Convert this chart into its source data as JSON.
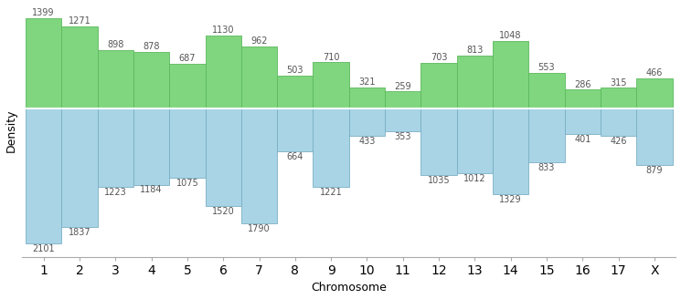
{
  "chromosomes": [
    "1",
    "2",
    "3",
    "4",
    "5",
    "6",
    "7",
    "8",
    "9",
    "10",
    "11",
    "12",
    "13",
    "14",
    "15",
    "16",
    "17",
    "X"
  ],
  "green_values": [
    1399,
    1271,
    898,
    878,
    687,
    1130,
    962,
    503,
    710,
    321,
    259,
    703,
    813,
    1048,
    553,
    286,
    315,
    466
  ],
  "blue_values": [
    2101,
    1837,
    1223,
    1184,
    1075,
    1520,
    1790,
    664,
    1221,
    433,
    353,
    1035,
    1012,
    1329,
    833,
    401,
    426,
    879
  ],
  "green_color": "#7FD67F",
  "blue_color": "#A8D4E6",
  "green_edge": "#5CB85C",
  "blue_edge": "#7BAFC4",
  "bar_width": 1.0,
  "xlabel": "Chromosome",
  "ylabel": "Density",
  "figsize": [
    7.45,
    3.28
  ],
  "dpi": 100,
  "label_fontsize": 7,
  "axis_label_fontsize": 9,
  "spine_color": "#AAAAAA",
  "text_color": "#555555"
}
